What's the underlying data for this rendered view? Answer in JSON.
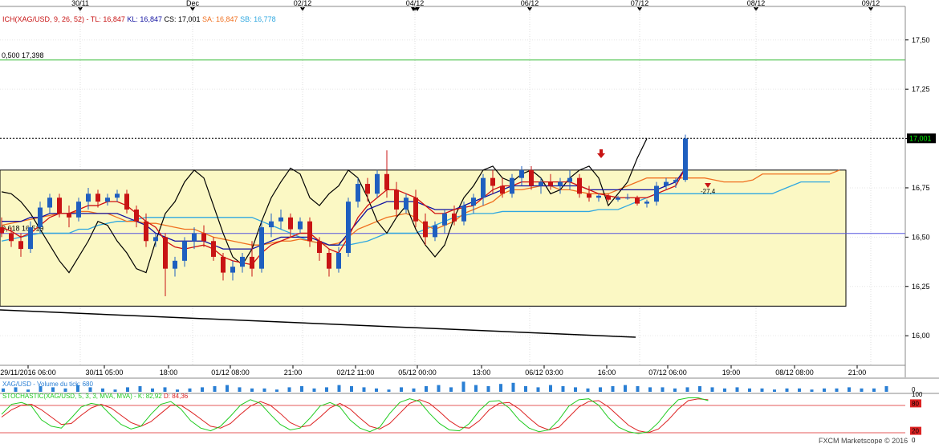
{
  "header": {
    "ichimoku_prefix": "ICH(XAG/USD, 9, 26, 52) - ",
    "tl_text": "TL: 16,847",
    "kl_text": "KL: 16,847",
    "cs_text": "CS: 17,001",
    "sa_text": "SA: 16,847",
    "sb_text": "SB: 16,778"
  },
  "top_date_labels": [
    "30/11",
    "Dec",
    "02/12",
    "04/12",
    "06/12",
    "07/12",
    "08/12",
    "09/12"
  ],
  "price_axis": {
    "ticks": [
      17.5,
      17.25,
      17.0,
      16.75,
      16.5,
      16.25,
      16.0
    ],
    "tick_labels": [
      "17,50",
      "17,25",
      "17,00",
      "16,75",
      "16,50",
      "16,25",
      "16,00"
    ],
    "current_price_label": "17,001"
  },
  "fib_labels": {
    "upper": "0,500 17,398",
    "lower": "0,618 16,519"
  },
  "annotations": {
    "stoch_marker": "-27,4"
  },
  "time_axis_labels": [
    "29/11/2016 06:00",
    "30/11 05:00",
    "18:00",
    "01/12 08:00",
    "21:00",
    "02/12 11:00",
    "05/12 00:00",
    "13:00",
    "06/12 03:00",
    "16:00",
    "07/12 06:00",
    "19:00",
    "08/12 08:00",
    "21:00"
  ],
  "volume_panel": {
    "label": "XAG/USD - Volume du tick: 680",
    "axis_label": "0"
  },
  "stochastic_panel": {
    "prefix": "STOCHASTIC(XAG/USD, 5, 3, 3, MVA, MVA) - ",
    "k_text": "K: 82,92",
    "d_text": "D: 84,36",
    "axis_labels": [
      "100",
      "80",
      "20",
      "0"
    ]
  },
  "footer": {
    "credit": "FXCM Marketscope © 2016"
  },
  "colors": {
    "bull": "#1f5fbf",
    "bear": "#c81414",
    "tenkan": "#d01010",
    "kijun": "#1010a0",
    "span_a": "#f07020",
    "span_b": "#30a8e0",
    "chikou": "#000000",
    "zone_fill": "#fbf8c4",
    "fib_upper": "#33bb33",
    "fib_lower": "#5555dd",
    "stoch_k": "#22cc22",
    "stoch_d": "#dd2222",
    "volume": "#2a7fd4"
  },
  "chart_data": {
    "type": "candlestick",
    "symbol": "XAG/USD",
    "y_range": [
      15.85,
      17.67
    ],
    "current_price": 17.001,
    "fib_levels": [
      {
        "label": "0,500",
        "value": 17.398
      },
      {
        "label": "0,618",
        "value": 16.519
      }
    ],
    "candles": [
      {
        "o": 16.55,
        "h": 16.6,
        "l": 16.5,
        "c": 16.52
      },
      {
        "o": 16.52,
        "h": 16.55,
        "l": 16.45,
        "c": 16.48
      },
      {
        "o": 16.48,
        "h": 16.52,
        "l": 16.4,
        "c": 16.44
      },
      {
        "o": 16.44,
        "h": 16.58,
        "l": 16.42,
        "c": 16.55
      },
      {
        "o": 16.55,
        "h": 16.68,
        "l": 16.52,
        "c": 16.65
      },
      {
        "o": 16.65,
        "h": 16.72,
        "l": 16.62,
        "c": 16.7
      },
      {
        "o": 16.7,
        "h": 16.72,
        "l": 16.6,
        "c": 16.62
      },
      {
        "o": 16.62,
        "h": 16.66,
        "l": 16.55,
        "c": 16.6
      },
      {
        "o": 16.6,
        "h": 16.7,
        "l": 16.58,
        "c": 16.68
      },
      {
        "o": 16.68,
        "h": 16.75,
        "l": 16.64,
        "c": 16.72
      },
      {
        "o": 16.72,
        "h": 16.74,
        "l": 16.65,
        "c": 16.68
      },
      {
        "o": 16.68,
        "h": 16.72,
        "l": 16.66,
        "c": 16.7
      },
      {
        "o": 16.7,
        "h": 16.74,
        "l": 16.68,
        "c": 16.72
      },
      {
        "o": 16.72,
        "h": 16.74,
        "l": 16.62,
        "c": 16.64
      },
      {
        "o": 16.64,
        "h": 16.66,
        "l": 16.55,
        "c": 16.58
      },
      {
        "o": 16.58,
        "h": 16.62,
        "l": 16.45,
        "c": 16.48
      },
      {
        "o": 16.48,
        "h": 16.52,
        "l": 16.45,
        "c": 16.5
      },
      {
        "o": 16.5,
        "h": 16.52,
        "l": 16.2,
        "c": 16.34
      },
      {
        "o": 16.34,
        "h": 16.4,
        "l": 16.3,
        "c": 16.38
      },
      {
        "o": 16.38,
        "h": 16.5,
        "l": 16.35,
        "c": 16.48
      },
      {
        "o": 16.48,
        "h": 16.55,
        "l": 16.44,
        "c": 16.52
      },
      {
        "o": 16.52,
        "h": 16.56,
        "l": 16.45,
        "c": 16.48
      },
      {
        "o": 16.48,
        "h": 16.5,
        "l": 16.38,
        "c": 16.4
      },
      {
        "o": 16.4,
        "h": 16.42,
        "l": 16.28,
        "c": 16.32
      },
      {
        "o": 16.32,
        "h": 16.38,
        "l": 16.28,
        "c": 16.35
      },
      {
        "o": 16.35,
        "h": 16.42,
        "l": 16.32,
        "c": 16.4
      },
      {
        "o": 16.4,
        "h": 16.48,
        "l": 16.3,
        "c": 16.34
      },
      {
        "o": 16.34,
        "h": 16.58,
        "l": 16.32,
        "c": 16.55
      },
      {
        "o": 16.55,
        "h": 16.62,
        "l": 16.5,
        "c": 16.58
      },
      {
        "o": 16.58,
        "h": 16.64,
        "l": 16.54,
        "c": 16.6
      },
      {
        "o": 16.6,
        "h": 16.62,
        "l": 16.5,
        "c": 16.54
      },
      {
        "o": 16.54,
        "h": 16.6,
        "l": 16.52,
        "c": 16.58
      },
      {
        "o": 16.58,
        "h": 16.6,
        "l": 16.45,
        "c": 16.48
      },
      {
        "o": 16.48,
        "h": 16.5,
        "l": 16.38,
        "c": 16.42
      },
      {
        "o": 16.42,
        "h": 16.44,
        "l": 16.3,
        "c": 16.34
      },
      {
        "o": 16.34,
        "h": 16.45,
        "l": 16.32,
        "c": 16.42
      },
      {
        "o": 16.42,
        "h": 16.7,
        "l": 16.4,
        "c": 16.68
      },
      {
        "o": 16.68,
        "h": 16.8,
        "l": 16.65,
        "c": 16.77
      },
      {
        "o": 16.77,
        "h": 16.8,
        "l": 16.68,
        "c": 16.72
      },
      {
        "o": 16.72,
        "h": 16.84,
        "l": 16.7,
        "c": 16.82
      },
      {
        "o": 16.82,
        "h": 16.94,
        "l": 16.7,
        "c": 16.74
      },
      {
        "o": 16.74,
        "h": 16.78,
        "l": 16.6,
        "c": 16.64
      },
      {
        "o": 16.64,
        "h": 16.72,
        "l": 16.62,
        "c": 16.7
      },
      {
        "o": 16.7,
        "h": 16.74,
        "l": 16.55,
        "c": 16.58
      },
      {
        "o": 16.58,
        "h": 16.62,
        "l": 16.46,
        "c": 16.5
      },
      {
        "o": 16.5,
        "h": 16.58,
        "l": 16.48,
        "c": 16.56
      },
      {
        "o": 16.56,
        "h": 16.64,
        "l": 16.52,
        "c": 16.62
      },
      {
        "o": 16.62,
        "h": 16.66,
        "l": 16.56,
        "c": 16.58
      },
      {
        "o": 16.58,
        "h": 16.68,
        "l": 16.56,
        "c": 16.66
      },
      {
        "o": 16.66,
        "h": 16.72,
        "l": 16.62,
        "c": 16.7
      },
      {
        "o": 16.7,
        "h": 16.82,
        "l": 16.66,
        "c": 16.8
      },
      {
        "o": 16.8,
        "h": 16.84,
        "l": 16.72,
        "c": 16.76
      },
      {
        "o": 16.76,
        "h": 16.8,
        "l": 16.7,
        "c": 16.72
      },
      {
        "o": 16.72,
        "h": 16.82,
        "l": 16.7,
        "c": 16.8
      },
      {
        "o": 16.8,
        "h": 16.86,
        "l": 16.76,
        "c": 16.84
      },
      {
        "o": 16.84,
        "h": 16.86,
        "l": 16.74,
        "c": 16.76
      },
      {
        "o": 16.76,
        "h": 16.8,
        "l": 16.72,
        "c": 16.78
      },
      {
        "o": 16.78,
        "h": 16.82,
        "l": 16.74,
        "c": 16.76
      },
      {
        "o": 16.76,
        "h": 16.8,
        "l": 16.72,
        "c": 16.78
      },
      {
        "o": 16.78,
        "h": 16.84,
        "l": 16.74,
        "c": 16.8
      },
      {
        "o": 16.8,
        "h": 16.82,
        "l": 16.7,
        "c": 16.72
      },
      {
        "o": 16.72,
        "h": 16.76,
        "l": 16.68,
        "c": 16.7
      },
      {
        "o": 16.7,
        "h": 16.72,
        "l": 16.68,
        "c": 16.71
      },
      {
        "o": 16.71,
        "h": 16.72,
        "l": 16.68,
        "c": 16.69
      },
      {
        "o": 16.69,
        "h": 16.71,
        "l": 16.68,
        "c": 16.7
      },
      {
        "o": 16.7,
        "h": 16.72,
        "l": 16.69,
        "c": 16.7
      },
      {
        "o": 16.7,
        "h": 16.71,
        "l": 16.66,
        "c": 16.67
      },
      {
        "o": 16.67,
        "h": 16.69,
        "l": 16.65,
        "c": 16.68
      },
      {
        "o": 16.68,
        "h": 16.78,
        "l": 16.66,
        "c": 16.76
      },
      {
        "o": 16.76,
        "h": 16.8,
        "l": 16.74,
        "c": 16.78
      },
      {
        "o": 16.78,
        "h": 16.8,
        "l": 16.75,
        "c": 16.79
      },
      {
        "o": 16.79,
        "h": 17.02,
        "l": 16.78,
        "c": 17.0
      }
    ],
    "tenkan_sen": [
      16.55,
      16.53,
      16.5,
      16.52,
      16.56,
      16.6,
      16.62,
      16.62,
      16.64,
      16.66,
      16.66,
      16.68,
      16.68,
      16.66,
      16.62,
      16.58,
      16.55,
      16.48,
      16.45,
      16.44,
      16.45,
      16.46,
      16.44,
      16.4,
      16.38,
      16.37,
      16.36,
      16.42,
      16.46,
      16.48,
      16.5,
      16.52,
      16.52,
      16.48,
      16.44,
      16.42,
      16.5,
      16.6,
      16.66,
      16.7,
      16.74,
      16.74,
      16.72,
      16.7,
      16.66,
      16.62,
      16.62,
      16.64,
      16.65,
      16.66,
      16.7,
      16.74,
      16.76,
      16.76,
      16.78,
      16.78,
      16.78,
      16.78,
      16.78,
      16.78,
      16.76,
      16.74,
      16.72,
      16.71,
      16.7,
      16.7,
      16.7,
      16.7,
      16.72,
      16.74,
      16.76,
      16.85
    ],
    "kijun_sen": [
      16.58,
      16.58,
      16.58,
      16.6,
      16.6,
      16.62,
      16.62,
      16.62,
      16.62,
      16.62,
      16.62,
      16.62,
      16.62,
      16.6,
      16.58,
      16.56,
      16.52,
      16.5,
      16.48,
      16.48,
      16.48,
      16.48,
      16.46,
      16.44,
      16.44,
      16.44,
      16.44,
      16.46,
      16.48,
      16.5,
      16.5,
      16.5,
      16.5,
      16.48,
      16.46,
      16.46,
      16.52,
      16.58,
      16.64,
      16.66,
      16.68,
      16.68,
      16.68,
      16.68,
      16.66,
      16.64,
      16.64,
      16.64,
      16.66,
      16.68,
      16.7,
      16.72,
      16.74,
      16.76,
      16.76,
      16.76,
      16.76,
      16.76,
      16.76,
      16.76,
      16.76,
      16.74,
      16.74,
      16.74,
      16.74,
      16.74,
      16.74,
      16.74,
      16.74,
      16.76,
      16.78,
      16.85
    ],
    "senkou_a": [
      16.56,
      16.57,
      16.58,
      16.59,
      16.6,
      16.61,
      16.62,
      16.62,
      16.63,
      16.63,
      16.62,
      16.62,
      16.6,
      16.58,
      16.58,
      16.57,
      16.57,
      16.56,
      16.55,
      16.54,
      16.54,
      16.52,
      16.5,
      16.49,
      16.48,
      16.47,
      16.46,
      16.46,
      16.47,
      16.48,
      16.48,
      16.49,
      16.48,
      16.47,
      16.46,
      16.47,
      16.5,
      16.54,
      16.56,
      16.58,
      16.6,
      16.61,
      16.62,
      16.6,
      16.56,
      16.54,
      16.56,
      16.58,
      16.62,
      16.64,
      16.66,
      16.68,
      16.72,
      16.74,
      16.74,
      16.75,
      16.76,
      16.76,
      16.74,
      16.74,
      16.73,
      16.72,
      16.72,
      16.72,
      16.74,
      16.76,
      16.78,
      16.8,
      16.8,
      16.8,
      16.8,
      16.8,
      16.8,
      16.8,
      16.79,
      16.78,
      16.78,
      16.78,
      16.79,
      16.82,
      16.82,
      16.82,
      16.82,
      16.82,
      16.82,
      16.82,
      16.82,
      16.84
    ],
    "senkou_b": [
      16.48,
      16.49,
      16.5,
      16.51,
      16.52,
      16.52,
      16.52,
      16.52,
      16.54,
      16.54,
      16.56,
      16.57,
      16.58,
      16.58,
      16.59,
      16.6,
      16.6,
      16.6,
      16.6,
      16.6,
      16.6,
      16.6,
      16.6,
      16.6,
      16.6,
      16.6,
      16.6,
      16.58,
      16.56,
      16.54,
      16.52,
      16.5,
      16.48,
      16.47,
      16.46,
      16.46,
      16.46,
      16.47,
      16.48,
      16.5,
      16.52,
      16.52,
      16.52,
      16.52,
      16.54,
      16.56,
      16.58,
      16.6,
      16.61,
      16.62,
      16.62,
      16.62,
      16.63,
      16.63,
      16.63,
      16.63,
      16.63,
      16.63,
      16.63,
      16.63,
      16.63,
      16.63,
      16.64,
      16.64,
      16.64,
      16.66,
      16.68,
      16.7,
      16.72,
      16.72,
      16.72,
      16.72,
      16.72,
      16.72,
      16.72,
      16.72,
      16.72,
      16.72,
      16.72,
      16.72,
      16.72,
      16.74,
      16.76,
      16.78,
      16.78,
      16.78,
      16.78
    ],
    "chikou_span": [
      16.73,
      16.72,
      16.68,
      16.62,
      16.54,
      16.46,
      16.38,
      16.32,
      16.4,
      16.48,
      16.58,
      16.56,
      16.48,
      16.42,
      16.34,
      16.32,
      16.48,
      16.62,
      16.68,
      16.78,
      16.84,
      16.8,
      16.66,
      16.52,
      16.4,
      16.36,
      16.44,
      16.58,
      16.7,
      16.78,
      16.85,
      16.82,
      16.7,
      16.66,
      16.72,
      16.76,
      16.84,
      16.8,
      16.7,
      16.58,
      16.52,
      16.6,
      16.66,
      16.54,
      16.46,
      16.4,
      16.46,
      16.6,
      16.7,
      16.76,
      16.84,
      16.86,
      16.8,
      16.78,
      16.82,
      16.84,
      16.8,
      16.72,
      16.74,
      16.8,
      16.84,
      16.86,
      16.8,
      16.66,
      16.72,
      16.78,
      16.9,
      17.0
    ],
    "zone": {
      "top": 16.84,
      "bottom": 16.15
    },
    "volume": [
      3,
      4,
      2,
      5,
      4,
      3,
      6,
      4,
      3,
      2,
      4,
      5,
      3,
      4,
      2,
      3,
      4,
      5,
      6,
      4,
      3,
      3,
      2,
      4,
      5,
      3,
      4,
      6,
      5,
      4,
      3,
      2,
      4,
      3,
      5,
      6,
      4,
      9,
      6,
      5,
      7,
      8,
      5,
      4,
      6,
      5,
      4,
      3,
      4,
      5,
      6,
      5,
      4,
      4,
      3,
      4,
      5,
      4,
      3,
      4,
      3,
      3,
      2,
      3,
      3,
      2,
      3,
      3,
      4,
      3,
      3,
      5
    ],
    "stochastic_k": [
      56,
      78,
      82,
      74,
      44,
      30,
      26,
      48,
      72,
      80,
      76,
      54,
      34,
      24,
      30,
      56,
      78,
      84,
      68,
      42,
      26,
      20,
      30,
      52,
      76,
      88,
      80,
      56,
      34,
      22,
      26,
      48,
      74,
      82,
      72,
      44,
      26,
      18,
      28,
      58,
      82,
      90,
      84,
      58,
      36,
      22,
      20,
      36,
      64,
      84,
      86,
      70,
      44,
      26,
      18,
      22,
      44,
      74,
      88,
      90,
      76,
      48,
      28,
      18,
      14,
      18,
      38,
      66,
      88,
      92,
      92,
      86
    ],
    "stochastic_d": [
      50,
      66,
      76,
      78,
      66,
      50,
      34,
      36,
      54,
      70,
      78,
      70,
      54,
      38,
      30,
      40,
      58,
      76,
      76,
      62,
      46,
      30,
      26,
      36,
      56,
      74,
      84,
      76,
      58,
      38,
      28,
      32,
      50,
      70,
      80,
      68,
      48,
      30,
      24,
      36,
      58,
      80,
      88,
      80,
      62,
      42,
      28,
      26,
      42,
      66,
      80,
      82,
      68,
      48,
      30,
      22,
      28,
      50,
      72,
      84,
      86,
      72,
      52,
      32,
      20,
      16,
      24,
      44,
      68,
      86,
      90,
      88
    ]
  }
}
